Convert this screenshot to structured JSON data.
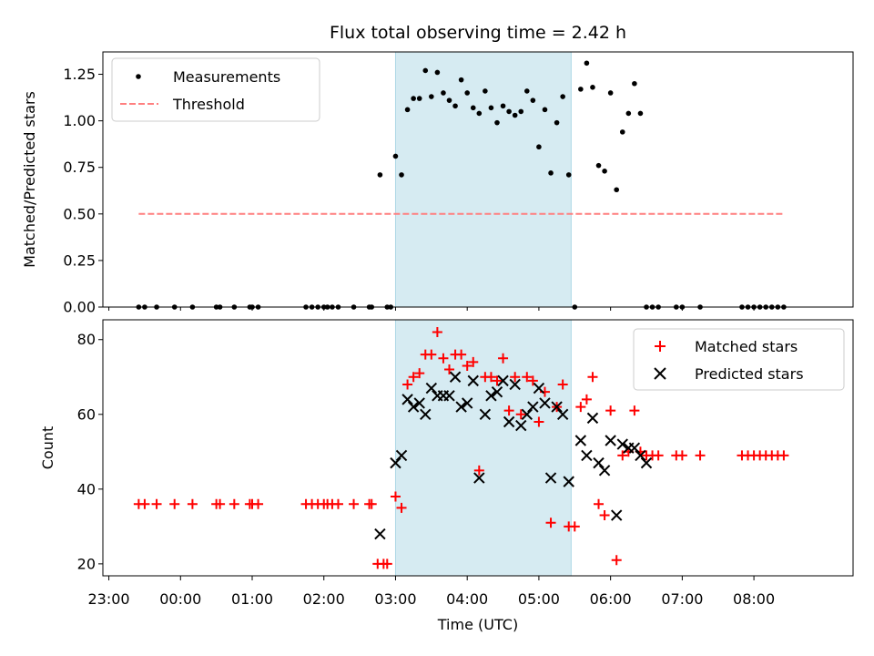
{
  "chart_data": {
    "title": "Flux total observing time = 2.42 h",
    "xlabel": "Time (UTC)",
    "x_ticks": [
      "23:00",
      "00:00",
      "01:00",
      "02:00",
      "03:00",
      "04:00",
      "05:00",
      "06:00",
      "07:00",
      "08:00"
    ],
    "shaded_span": [
      "03:00",
      "05:27"
    ],
    "colors": {
      "measurements": "#000000",
      "threshold": "#ff7f7f",
      "matched": "#ff0000",
      "predicted": "#000000",
      "shade": "#add8e6"
    },
    "panels": [
      {
        "type": "scatter",
        "ylabel": "Matched/Predicted stars",
        "ylim": [
          0,
          1.37
        ],
        "y_ticks": [
          "0.00",
          "0.25",
          "0.50",
          "0.75",
          "1.00",
          "1.25"
        ],
        "legend": "top-left",
        "series": [
          {
            "name": "Measurements",
            "marker": "dot",
            "points": [
              [
                "23:25",
                0
              ],
              [
                "23:30",
                0
              ],
              [
                "23:40",
                0
              ],
              [
                "23:55",
                0
              ],
              [
                "00:10",
                0
              ],
              [
                "00:30",
                0
              ],
              [
                "00:33",
                0
              ],
              [
                "00:45",
                0
              ],
              [
                "00:58",
                0
              ],
              [
                "01:00",
                0
              ],
              [
                "01:05",
                0
              ],
              [
                "01:45",
                0
              ],
              [
                "01:50",
                0
              ],
              [
                "01:55",
                0
              ],
              [
                "02:00",
                0
              ],
              [
                "02:03",
                0
              ],
              [
                "02:07",
                0
              ],
              [
                "02:12",
                0
              ],
              [
                "02:25",
                0
              ],
              [
                "02:38",
                0
              ],
              [
                "02:40",
                0
              ],
              [
                "02:47",
                0.71
              ],
              [
                "02:53",
                0
              ],
              [
                "02:56",
                0
              ],
              [
                "03:00",
                0.81
              ],
              [
                "03:05",
                0.71
              ],
              [
                "03:10",
                1.06
              ],
              [
                "03:15",
                1.12
              ],
              [
                "03:20",
                1.12
              ],
              [
                "03:25",
                1.27
              ],
              [
                "03:30",
                1.13
              ],
              [
                "03:35",
                1.26
              ],
              [
                "03:40",
                1.15
              ],
              [
                "03:45",
                1.11
              ],
              [
                "03:50",
                1.08
              ],
              [
                "03:55",
                1.22
              ],
              [
                "04:00",
                1.15
              ],
              [
                "04:05",
                1.07
              ],
              [
                "04:10",
                1.04
              ],
              [
                "04:15",
                1.16
              ],
              [
                "04:20",
                1.07
              ],
              [
                "04:25",
                0.99
              ],
              [
                "04:30",
                1.08
              ],
              [
                "04:35",
                1.05
              ],
              [
                "04:40",
                1.03
              ],
              [
                "04:45",
                1.05
              ],
              [
                "04:50",
                1.16
              ],
              [
                "04:55",
                1.11
              ],
              [
                "05:00",
                0.86
              ],
              [
                "05:05",
                1.06
              ],
              [
                "05:10",
                0.72
              ],
              [
                "05:15",
                0.99
              ],
              [
                "05:20",
                1.13
              ],
              [
                "05:25",
                0.71
              ],
              [
                "05:30",
                0
              ],
              [
                "05:35",
                1.17
              ],
              [
                "05:40",
                1.31
              ],
              [
                "05:45",
                1.18
              ],
              [
                "05:50",
                0.76
              ],
              [
                "05:55",
                0.73
              ],
              [
                "06:00",
                1.15
              ],
              [
                "06:05",
                0.63
              ],
              [
                "06:10",
                0.94
              ],
              [
                "06:15",
                1.04
              ],
              [
                "06:20",
                1.2
              ],
              [
                "06:25",
                1.04
              ],
              [
                "06:30",
                0
              ],
              [
                "06:35",
                0
              ],
              [
                "06:40",
                0
              ],
              [
                "06:55",
                0
              ],
              [
                "07:00",
                0
              ],
              [
                "07:15",
                0
              ],
              [
                "07:50",
                0
              ],
              [
                "07:55",
                0
              ],
              [
                "08:00",
                0
              ],
              [
                "08:05",
                0
              ],
              [
                "08:10",
                0
              ],
              [
                "08:15",
                0
              ],
              [
                "08:20",
                0
              ],
              [
                "08:25",
                0
              ]
            ]
          },
          {
            "name": "Threshold",
            "style": "dashed",
            "points": [
              [
                "23:25",
                0.5
              ],
              [
                "08:25",
                0.5
              ]
            ]
          }
        ]
      },
      {
        "type": "scatter",
        "ylabel": "Count",
        "ylim": [
          16.8,
          85.3
        ],
        "y_ticks": [
          "20",
          "40",
          "60",
          "80"
        ],
        "legend": "top-right",
        "series": [
          {
            "name": "Matched stars",
            "marker": "plus",
            "points": [
              [
                "23:25",
                36
              ],
              [
                "23:30",
                36
              ],
              [
                "23:40",
                36
              ],
              [
                "23:55",
                36
              ],
              [
                "00:10",
                36
              ],
              [
                "00:30",
                36
              ],
              [
                "00:33",
                36
              ],
              [
                "00:45",
                36
              ],
              [
                "00:58",
                36
              ],
              [
                "01:00",
                36
              ],
              [
                "01:05",
                36
              ],
              [
                "01:45",
                36
              ],
              [
                "01:50",
                36
              ],
              [
                "01:55",
                36
              ],
              [
                "02:00",
                36
              ],
              [
                "02:03",
                36
              ],
              [
                "02:07",
                36
              ],
              [
                "02:12",
                36
              ],
              [
                "02:25",
                36
              ],
              [
                "02:38",
                36
              ],
              [
                "02:40",
                36
              ],
              [
                "02:45",
                20
              ],
              [
                "02:50",
                20
              ],
              [
                "02:53",
                20
              ],
              [
                "03:00",
                38
              ],
              [
                "03:05",
                35
              ],
              [
                "03:10",
                68
              ],
              [
                "03:15",
                70
              ],
              [
                "03:20",
                71
              ],
              [
                "03:25",
                76
              ],
              [
                "03:30",
                76
              ],
              [
                "03:35",
                82
              ],
              [
                "03:40",
                75
              ],
              [
                "03:45",
                72
              ],
              [
                "03:50",
                76
              ],
              [
                "03:55",
                76
              ],
              [
                "04:00",
                73
              ],
              [
                "04:05",
                74
              ],
              [
                "04:10",
                45
              ],
              [
                "04:15",
                70
              ],
              [
                "04:20",
                70
              ],
              [
                "04:25",
                69
              ],
              [
                "04:30",
                75
              ],
              [
                "04:35",
                61
              ],
              [
                "04:40",
                70
              ],
              [
                "04:45",
                60
              ],
              [
                "04:50",
                70
              ],
              [
                "04:55",
                69
              ],
              [
                "05:00",
                58
              ],
              [
                "05:05",
                66
              ],
              [
                "05:10",
                31
              ],
              [
                "05:15",
                62
              ],
              [
                "05:20",
                68
              ],
              [
                "05:25",
                30
              ],
              [
                "05:30",
                30
              ],
              [
                "05:35",
                62
              ],
              [
                "05:40",
                64
              ],
              [
                "05:45",
                70
              ],
              [
                "05:50",
                36
              ],
              [
                "05:55",
                33
              ],
              [
                "06:00",
                61
              ],
              [
                "06:05",
                21
              ],
              [
                "06:10",
                49
              ],
              [
                "06:15",
                50
              ],
              [
                "06:20",
                61
              ],
              [
                "06:25",
                50
              ],
              [
                "06:30",
                49
              ],
              [
                "06:35",
                49
              ],
              [
                "06:40",
                49
              ],
              [
                "06:55",
                49
              ],
              [
                "07:00",
                49
              ],
              [
                "07:15",
                49
              ],
              [
                "07:50",
                49
              ],
              [
                "07:55",
                49
              ],
              [
                "08:00",
                49
              ],
              [
                "08:05",
                49
              ],
              [
                "08:10",
                49
              ],
              [
                "08:15",
                49
              ],
              [
                "08:20",
                49
              ],
              [
                "08:25",
                49
              ]
            ]
          },
          {
            "name": "Predicted stars",
            "marker": "x",
            "points": [
              [
                "02:47",
                28
              ],
              [
                "03:00",
                47
              ],
              [
                "03:05",
                49
              ],
              [
                "03:10",
                64
              ],
              [
                "03:15",
                62
              ],
              [
                "03:20",
                63
              ],
              [
                "03:25",
                60
              ],
              [
                "03:30",
                67
              ],
              [
                "03:35",
                65
              ],
              [
                "03:40",
                65
              ],
              [
                "03:45",
                65
              ],
              [
                "03:50",
                70
              ],
              [
                "03:55",
                62
              ],
              [
                "04:00",
                63
              ],
              [
                "04:05",
                69
              ],
              [
                "04:10",
                43
              ],
              [
                "04:15",
                60
              ],
              [
                "04:20",
                65
              ],
              [
                "04:25",
                66
              ],
              [
                "04:30",
                69
              ],
              [
                "04:35",
                58
              ],
              [
                "04:40",
                68
              ],
              [
                "04:45",
                57
              ],
              [
                "04:50",
                60
              ],
              [
                "04:55",
                62
              ],
              [
                "05:00",
                67
              ],
              [
                "05:05",
                63
              ],
              [
                "05:10",
                43
              ],
              [
                "05:15",
                62
              ],
              [
                "05:20",
                60
              ],
              [
                "05:25",
                42
              ],
              [
                "05:35",
                53
              ],
              [
                "05:40",
                49
              ],
              [
                "05:45",
                59
              ],
              [
                "05:50",
                47
              ],
              [
                "05:55",
                45
              ],
              [
                "06:00",
                53
              ],
              [
                "06:05",
                33
              ],
              [
                "06:10",
                52
              ],
              [
                "06:15",
                51
              ],
              [
                "06:20",
                51
              ],
              [
                "06:25",
                49
              ],
              [
                "06:30",
                47
              ]
            ]
          }
        ]
      }
    ]
  }
}
